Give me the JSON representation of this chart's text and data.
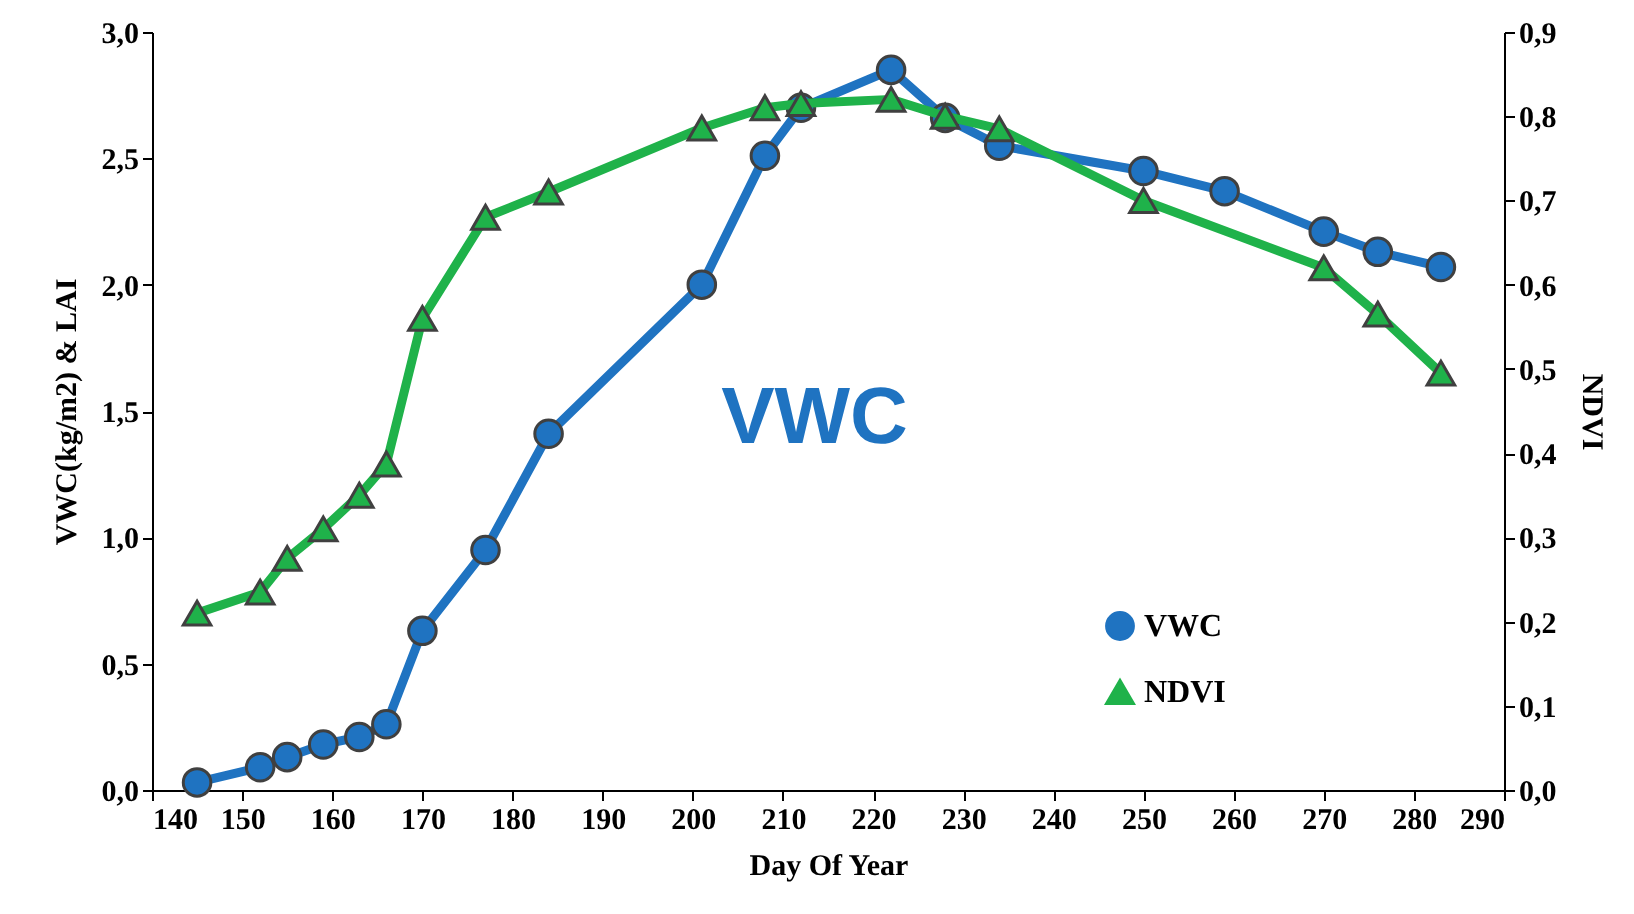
{
  "chart_data": {
    "type": "line",
    "xlabel": "Day Of Year",
    "ylabel": "VWC(kg/m2)  & LAI",
    "y2label": "NDVI",
    "annotations": [
      "VWC"
    ],
    "xlim": [
      140,
      290
    ],
    "xticks": [
      140,
      150,
      160,
      170,
      180,
      190,
      200,
      210,
      220,
      230,
      240,
      250,
      260,
      270,
      280,
      290
    ],
    "ylim": [
      0,
      3
    ],
    "yticks": [
      {
        "value": 0,
        "label": "0,0"
      },
      {
        "value": 0.5,
        "label": "0,5"
      },
      {
        "value": 1,
        "label": "1,0"
      },
      {
        "value": 1.5,
        "label": "1,5"
      },
      {
        "value": 2,
        "label": "2,0"
      },
      {
        "value": 2.5,
        "label": "2,5"
      },
      {
        "value": 3,
        "label": "3,0"
      }
    ],
    "y2lim": [
      0,
      0.9
    ],
    "y2ticks": [
      {
        "value": 0,
        "label": "0,0"
      },
      {
        "value": 0.1,
        "label": "0,1"
      },
      {
        "value": 0.2,
        "label": "0,2"
      },
      {
        "value": 0.3,
        "label": "0,3"
      },
      {
        "value": 0.4,
        "label": "0,4"
      },
      {
        "value": 0.5,
        "label": "0,5"
      },
      {
        "value": 0.6,
        "label": "0,6"
      },
      {
        "value": 0.7,
        "label": "0,7"
      },
      {
        "value": 0.8,
        "label": "0,8"
      },
      {
        "value": 0.9,
        "label": "0,9"
      }
    ],
    "legend": "bottom right",
    "grid": false,
    "line_style": "solid",
    "series": [
      {
        "name": "VWC",
        "color": "#1f73c1",
        "marker": "circle",
        "x": [
          145,
          152,
          155,
          159,
          163,
          166,
          170,
          177,
          184,
          201,
          208,
          212,
          222,
          228,
          234,
          250,
          259,
          270,
          276,
          283
        ],
        "values": [
          0.03,
          0.09,
          0.13,
          0.18,
          0.21,
          0.26,
          0.63,
          0.95,
          1.41,
          2.0,
          2.51,
          2.7,
          2.85,
          2.66,
          2.55,
          2.45,
          2.37,
          2.21,
          2.13,
          2.07
        ]
      },
      {
        "name": "NDVI",
        "color": "#1fb24a",
        "marker": "triangle",
        "axis": "y2",
        "x": [
          145,
          152,
          155,
          159,
          163,
          166,
          170,
          177,
          184,
          201,
          208,
          212,
          222,
          228,
          234,
          250,
          270,
          276,
          283
        ],
        "values": [
          0.21,
          0.235,
          0.275,
          0.31,
          0.35,
          0.387,
          0.56,
          0.68,
          0.71,
          0.786,
          0.81,
          0.815,
          0.82,
          0.8,
          0.785,
          0.7,
          0.62,
          0.565,
          0.495
        ]
      }
    ]
  }
}
